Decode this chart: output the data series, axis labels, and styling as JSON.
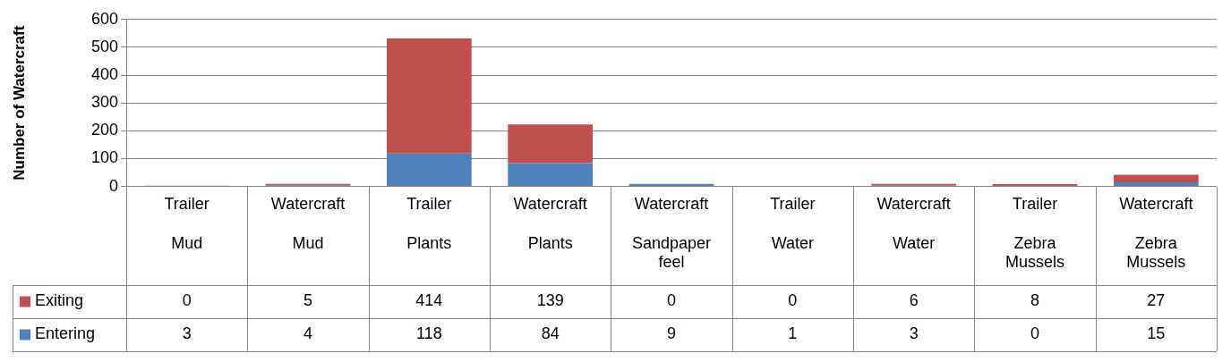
{
  "chart_data": {
    "type": "bar",
    "stacked": true,
    "ylabel": "Number of Watercraft",
    "categories": [
      "Trailer\nMud",
      "Watercraft\nMud",
      "Trailer\nPlants",
      "Watercraft\nPlants",
      "Watercraft\nSandpaper feel",
      "Trailer\nWater",
      "Watercraft\nWater",
      "Trailer\nZebra Mussels",
      "Watercraft\nZebra Mussels"
    ],
    "series": [
      {
        "name": "Entering",
        "color": "#4f81bd",
        "values": [
          3,
          4,
          118,
          84,
          9,
          1,
          3,
          0,
          15
        ]
      },
      {
        "name": "Exiting",
        "color": "#c0504d",
        "values": [
          0,
          5,
          414,
          139,
          0,
          0,
          6,
          8,
          27
        ]
      }
    ],
    "ylim": [
      0,
      600
    ],
    "yticks": [
      0,
      100,
      200,
      300,
      400,
      500,
      600
    ],
    "grid": "y",
    "legend": "bottom",
    "data_labels": true
  }
}
